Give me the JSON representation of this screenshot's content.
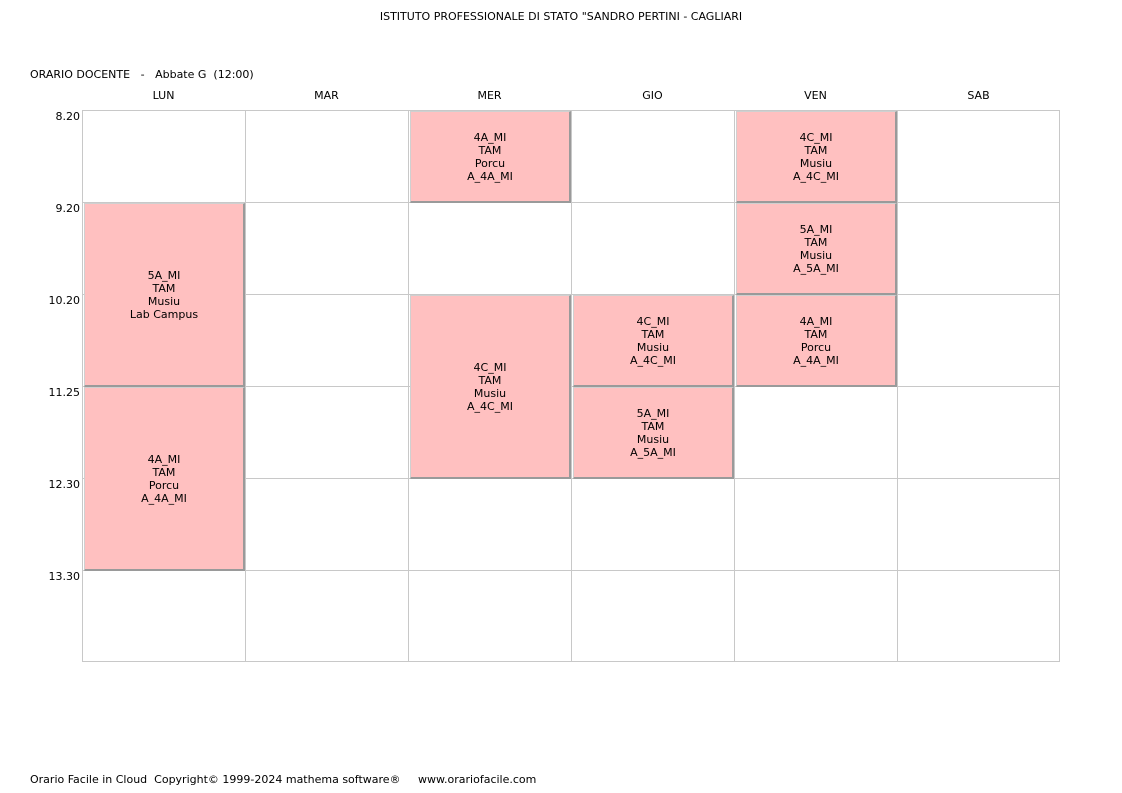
{
  "school_title": "ISTITUTO PROFESSIONALE DI STATO \"SANDRO PERTINI - CAGLIARI",
  "doc_header": {
    "label": "ORARIO DOCENTE",
    "separator": "-",
    "teacher": "Abbate G",
    "hours": "(12:00)"
  },
  "days": [
    "LUN",
    "MAR",
    "MER",
    "GIO",
    "VEN",
    "SAB"
  ],
  "times": [
    "8.20",
    "9.20",
    "10.20",
    "11.25",
    "12.30",
    "13.30"
  ],
  "lessons": [
    {
      "day": "LUN",
      "start": "9.20",
      "slots": 2,
      "lines": [
        "5A_MI",
        "TAM",
        "Musiu",
        "Lab Campus"
      ]
    },
    {
      "day": "LUN",
      "start": "11.25",
      "slots": 2,
      "lines": [
        "4A_MI",
        "TAM",
        "Porcu",
        "A_4A_MI"
      ]
    },
    {
      "day": "MER",
      "start": "8.20",
      "slots": 1,
      "lines": [
        "4A_MI",
        "TAM",
        "Porcu",
        "A_4A_MI"
      ]
    },
    {
      "day": "MER",
      "start": "10.20",
      "slots": 2,
      "lines": [
        "4C_MI",
        "TAM",
        "Musiu",
        "A_4C_MI"
      ]
    },
    {
      "day": "GIO",
      "start": "10.20",
      "slots": 1,
      "lines": [
        "4C_MI",
        "TAM",
        "Musiu",
        "A_4C_MI"
      ]
    },
    {
      "day": "GIO",
      "start": "11.25",
      "slots": 1,
      "lines": [
        "5A_MI",
        "TAM",
        "Musiu",
        "A_5A_MI"
      ]
    },
    {
      "day": "VEN",
      "start": "8.20",
      "slots": 1,
      "lines": [
        "4C_MI",
        "TAM",
        "Musiu",
        "A_4C_MI"
      ]
    },
    {
      "day": "VEN",
      "start": "9.20",
      "slots": 1,
      "lines": [
        "5A_MI",
        "TAM",
        "Musiu",
        "A_5A_MI"
      ]
    },
    {
      "day": "VEN",
      "start": "10.20",
      "slots": 1,
      "lines": [
        "4A_MI",
        "TAM",
        "Porcu",
        "A_4A_MI"
      ]
    }
  ],
  "footer": {
    "product": "Orario Facile in Cloud",
    "copyright": "Copyright© 1999-2024 mathema software®",
    "website": "www.orariofacile.com"
  },
  "colors": {
    "lesson_bg": "#ffc0c0",
    "grid_line": "#c8c8c8"
  }
}
